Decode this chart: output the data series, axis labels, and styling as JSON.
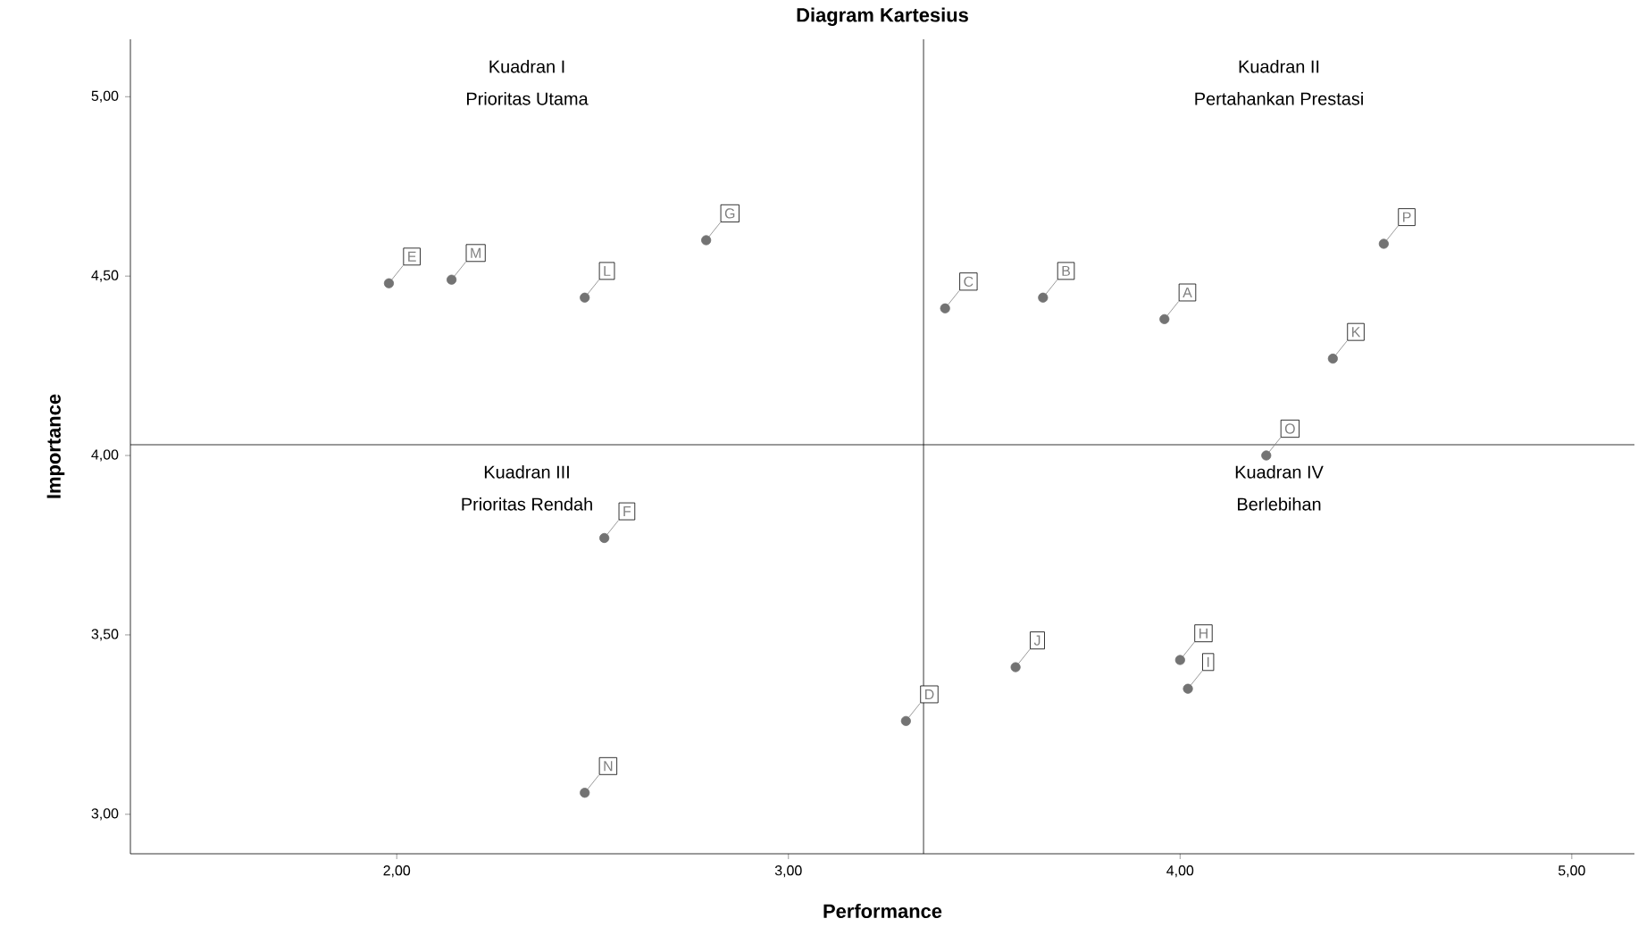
{
  "chart_data": {
    "type": "scatter",
    "title": "Diagram Kartesius",
    "xlabel": "Performance",
    "ylabel": "Importance",
    "x": [
      1.98,
      2.14,
      2.48,
      2.79,
      3.4,
      3.65,
      3.96,
      4.52,
      4.39,
      4.22,
      2.53,
      3.3,
      3.58,
      4.0,
      4.02,
      2.48
    ],
    "values": [
      4.48,
      4.49,
      4.44,
      4.6,
      4.41,
      4.44,
      4.38,
      4.59,
      4.27,
      4.0,
      3.77,
      3.26,
      3.41,
      3.43,
      3.35,
      3.06
    ],
    "color": "#737373",
    "marker": "circle",
    "xlim": [
      1.32,
      5.16
    ],
    "ylim": [
      2.89,
      5.16
    ],
    "xticks": [
      {
        "value": 2,
        "label": "2,00"
      },
      {
        "value": 3,
        "label": "3,00"
      },
      {
        "value": 4,
        "label": "4,00"
      },
      {
        "value": 5,
        "label": "5,00"
      }
    ],
    "yticks": [
      {
        "value": 3,
        "label": "3,00"
      },
      {
        "value": 3.5,
        "label": "3,50"
      },
      {
        "value": 4,
        "label": "4,00"
      },
      {
        "value": 4.5,
        "label": "4,50"
      },
      {
        "value": 5,
        "label": "5,00"
      }
    ],
    "ref_lines": [
      {
        "axis": "x",
        "value": 3.345,
        "color": "#000000"
      },
      {
        "axis": "y",
        "value": 4.03,
        "color": "#000000"
      }
    ],
    "annotations": [
      "Kuadran I",
      "Prioritas Utama",
      "Kuadran II",
      "Pertahankan Prestasi",
      "Kuadran III",
      "Prioritas Rendah",
      "Kuadran IV",
      "Berlebihan",
      {
        "text": "E",
        "x": 1.98,
        "y": 4.48
      },
      {
        "text": "M",
        "x": 2.14,
        "y": 4.49
      },
      {
        "text": "L",
        "x": 2.48,
        "y": 4.44
      },
      {
        "text": "G",
        "x": 2.79,
        "y": 4.6
      },
      {
        "text": "C",
        "x": 3.4,
        "y": 4.41
      },
      {
        "text": "B",
        "x": 3.65,
        "y": 4.44
      },
      {
        "text": "A",
        "x": 3.96,
        "y": 4.38
      },
      {
        "text": "P",
        "x": 4.52,
        "y": 4.59
      },
      {
        "text": "K",
        "x": 4.39,
        "y": 4.27
      },
      {
        "text": "O",
        "x": 4.22,
        "y": 4.0
      },
      {
        "text": "F",
        "x": 2.53,
        "y": 3.77
      },
      {
        "text": "D",
        "x": 3.3,
        "y": 3.26
      },
      {
        "text": "J",
        "x": 3.58,
        "y": 3.41
      },
      {
        "text": "H",
        "x": 4.0,
        "y": 3.43
      },
      {
        "text": "I",
        "x": 4.02,
        "y": 3.35
      },
      {
        "text": "N",
        "x": 2.48,
        "y": 3.06
      }
    ]
  }
}
